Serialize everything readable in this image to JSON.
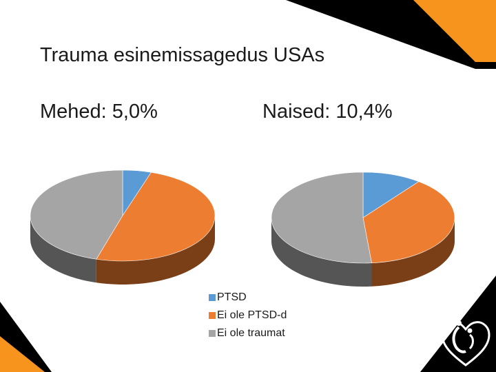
{
  "slide": {
    "title": "Trauma esinemissagedus USAs"
  },
  "chart_data": [
    {
      "type": "pie",
      "title": "Mehed: 5,0%",
      "categories": [
        "PTSD",
        "Ei ole PTSD-d",
        "Ei ole traumat"
      ],
      "values": [
        5.0,
        49.6,
        45.4
      ],
      "colors": [
        "#5b9bd5",
        "#ed7d31",
        "#a5a5a5"
      ],
      "side_colors": [
        "#3f6e99",
        "#7a3f17",
        "#555555"
      ],
      "legend": "bottom-center"
    },
    {
      "type": "pie",
      "title": "Naised: 10,4%",
      "categories": [
        "PTSD",
        "Ei ole PTSD-d",
        "Ei ole traumat"
      ],
      "values": [
        10.4,
        38.1,
        51.5
      ],
      "colors": [
        "#5b9bd5",
        "#ed7d31",
        "#a5a5a5"
      ],
      "side_colors": [
        "#3f6e99",
        "#7a3f17",
        "#555555"
      ],
      "legend": "bottom-center"
    }
  ],
  "legend": {
    "items": [
      {
        "label": "PTSD",
        "color": "#5b9bd5"
      },
      {
        "label": "Ei ole PTSD-d",
        "color": "#ed7d31"
      },
      {
        "label": "Ei ole traumat",
        "color": "#a5a5a5"
      }
    ]
  },
  "decor": {
    "accent": "#f7941d",
    "dark": "#000000",
    "logo": "heart-figure-logo-icon"
  }
}
